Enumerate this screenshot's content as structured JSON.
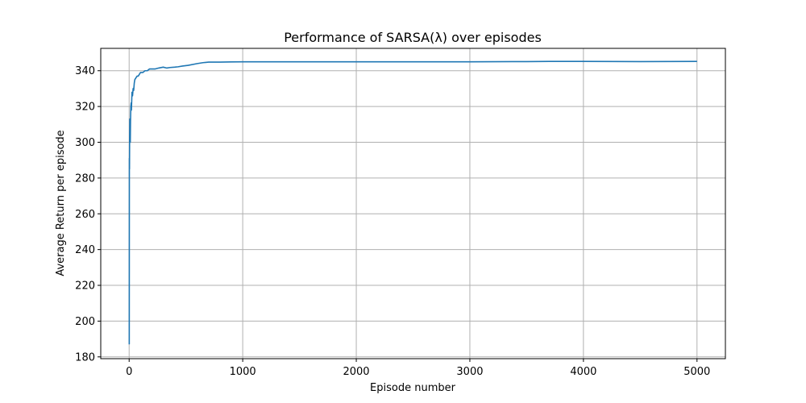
{
  "chart_data": {
    "type": "line",
    "title": "Performance of SARSA(λ) over episodes",
    "xlabel": "Episode number",
    "ylabel": "Average Return per episode",
    "xlim": [
      -250,
      5250
    ],
    "ylim": [
      179,
      352.5
    ],
    "x_ticks": [
      0,
      1000,
      2000,
      3000,
      4000,
      5000
    ],
    "x_tick_labels": [
      "0",
      "1000",
      "2000",
      "3000",
      "4000",
      "5000"
    ],
    "y_ticks": [
      180,
      200,
      220,
      240,
      260,
      280,
      300,
      320,
      340
    ],
    "y_tick_labels": [
      "180",
      "200",
      "220",
      "240",
      "260",
      "280",
      "300",
      "320",
      "340"
    ],
    "grid": true,
    "line_color": "#1f77b4",
    "series": [
      {
        "x": [
          1,
          2,
          3,
          4,
          6,
          8,
          10,
          12,
          15,
          18,
          20,
          25,
          30,
          35,
          40,
          45,
          50,
          60,
          70,
          80,
          90,
          100,
          120,
          140,
          160,
          180,
          200,
          230,
          260,
          300,
          330,
          360,
          400,
          430,
          470,
          520,
          600,
          650,
          700,
          800,
          900,
          1000,
          1200,
          1500,
          2000,
          2500,
          3000,
          3500,
          3700,
          4000,
          4500,
          5000
        ],
        "y": [
          187,
          291,
          285,
          300,
          313,
          305,
          300,
          312,
          320,
          322,
          318,
          328,
          326,
          330,
          329,
          333,
          335,
          336,
          337,
          337,
          338,
          339,
          339,
          340,
          340,
          341,
          341,
          341,
          341.5,
          342,
          341.5,
          341.8,
          342,
          342.2,
          342.6,
          343,
          344,
          344.5,
          344.8,
          344.8,
          344.9,
          345,
          345,
          345,
          345,
          345,
          345,
          345.1,
          345.2,
          345.2,
          345.1,
          345.2
        ]
      }
    ]
  }
}
